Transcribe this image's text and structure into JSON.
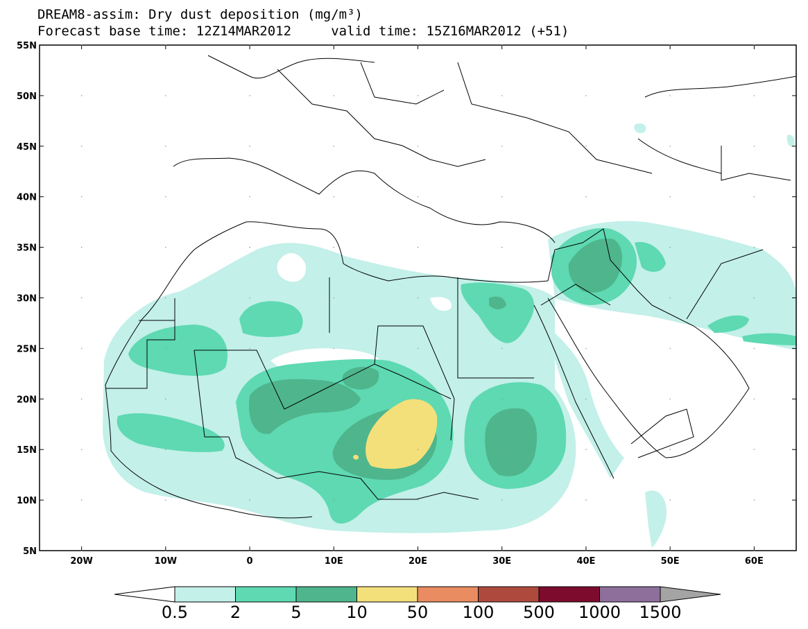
{
  "title": {
    "line1": "DREAM8-assim: Dry dust deposition (mg/m³)",
    "line2": "Forecast base time: 12Z14MAR2012     valid time: 15Z16MAR2012 (+51)"
  },
  "map": {
    "lon_range": [
      -25,
      65
    ],
    "lat_range": [
      5,
      55
    ],
    "lon_ticks": [
      {
        "value": -20,
        "label": "20W"
      },
      {
        "value": -10,
        "label": "10W"
      },
      {
        "value": 0,
        "label": "0"
      },
      {
        "value": 10,
        "label": "10E"
      },
      {
        "value": 20,
        "label": "20E"
      },
      {
        "value": 30,
        "label": "30E"
      },
      {
        "value": 40,
        "label": "40E"
      },
      {
        "value": 50,
        "label": "50E"
      },
      {
        "value": 60,
        "label": "60E"
      }
    ],
    "lat_ticks": [
      {
        "value": 55,
        "label": "55N"
      },
      {
        "value": 50,
        "label": "50N"
      },
      {
        "value": 45,
        "label": "45N"
      },
      {
        "value": 40,
        "label": "40N"
      },
      {
        "value": 35,
        "label": "35N"
      },
      {
        "value": 30,
        "label": "30N"
      },
      {
        "value": 25,
        "label": "25N"
      },
      {
        "value": 20,
        "label": "20N"
      },
      {
        "value": 15,
        "label": "15N"
      },
      {
        "value": 10,
        "label": "10N"
      },
      {
        "value": 5,
        "label": "5N"
      }
    ]
  },
  "colorbar": {
    "labels": [
      "0.5",
      "2",
      "5",
      "10",
      "50",
      "100",
      "500",
      "1000",
      "1500"
    ],
    "colors": [
      "#c3f0e9",
      "#5ed9b2",
      "#4fb58d",
      "#f3e07a",
      "#e98c62",
      "#ad4a3d",
      "#7c0b2d",
      "#8e6f9c",
      "#a4a4a4"
    ],
    "under_color": "#ffffff"
  }
}
